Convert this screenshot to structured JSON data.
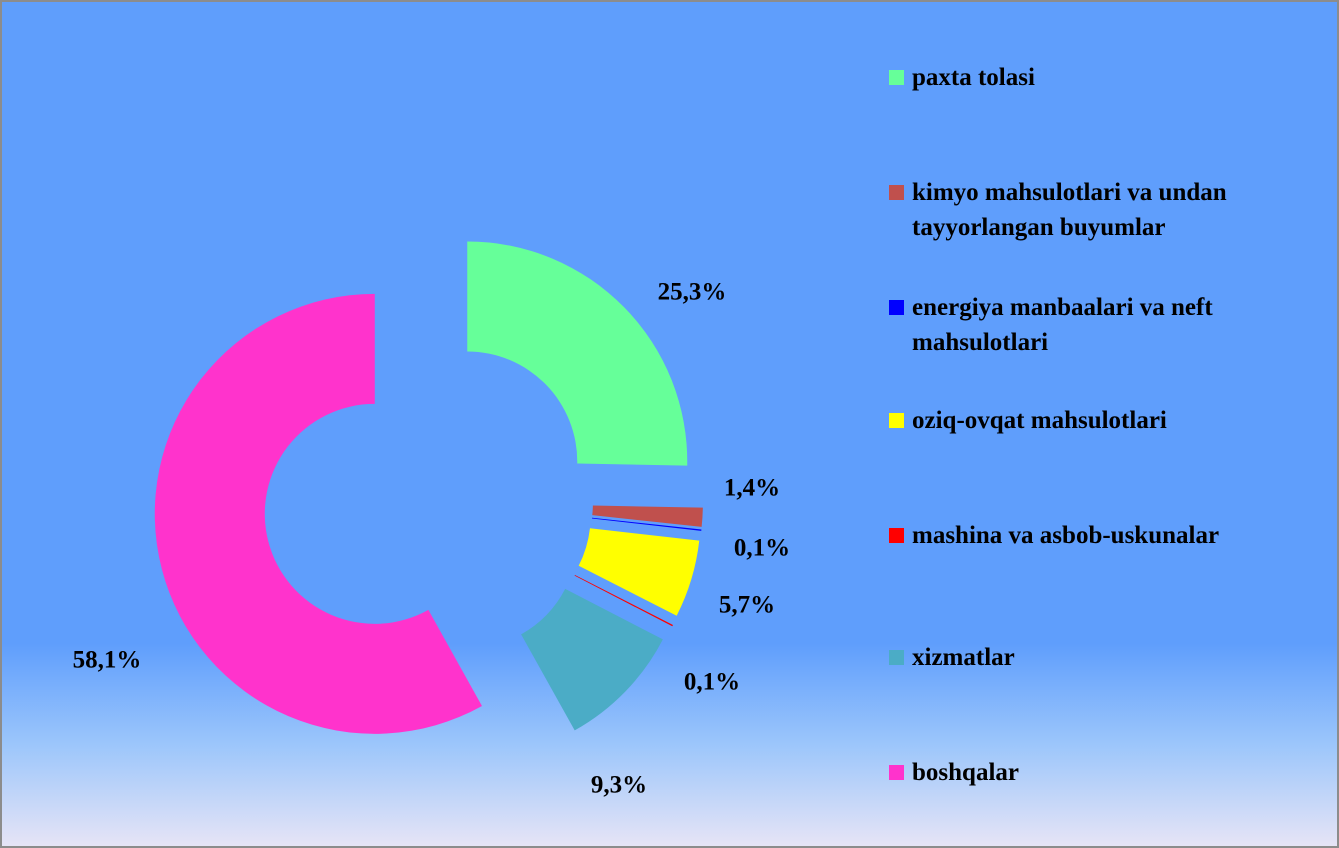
{
  "chart_data": {
    "type": "donut",
    "categories": [
      "paxta tolasi",
      "kimyo mahsulotlari va undan tayyorlangan buyumlar",
      "energiya manbaalari va neft mahsulotlari",
      "oziq-ovqat mahsulotlari",
      "mashina va asbob-uskunalar",
      "xizmatlar",
      "boshqalar"
    ],
    "values": [
      25.3,
      1.4,
      0.1,
      5.7,
      0.1,
      9.3,
      58.1
    ],
    "value_labels": [
      "25,3%",
      "1,4%",
      "0,1%",
      "5,7%",
      "0,1%",
      "9,3%",
      "58,1%"
    ],
    "colors": [
      "#66ff99",
      "#c0504d",
      "#0000ff",
      "#ffff00",
      "#ff0000",
      "#4bacc6",
      "#ff33cc"
    ],
    "legend": "right"
  }
}
